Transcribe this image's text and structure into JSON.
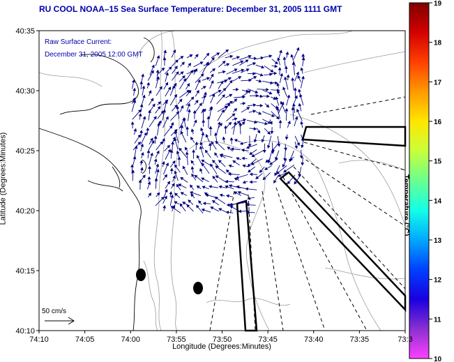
{
  "title": "RU COOL   NOAA–15  Sea Surface Temperature:  December 31, 2005 1111 GMT",
  "annotation": {
    "line1": "Raw Surface Current:",
    "line2": "December 31, 2005 12:00 GMT"
  },
  "scale": {
    "label": "50 cm/s"
  },
  "axes": {
    "ylabel": "Latitude (Degrees:Minutes)",
    "xlabel": "Longitude (Degrees:Minutes)",
    "yticks": [
      "40:35",
      "40:30",
      "40:25",
      "40:20",
      "40:15",
      "40:10"
    ],
    "xticks": [
      "74:10",
      "74:05",
      "74:00",
      "73:55",
      "73:50",
      "73:45",
      "73:40",
      "73:35",
      "73:3"
    ]
  },
  "colorbar": {
    "title": "Temperature (°C)",
    "ticks": [
      "19",
      "18",
      "17",
      "16",
      "15",
      "14",
      "13",
      "12",
      "11",
      "10"
    ],
    "colors": [
      "#7f0000",
      "#d40000",
      "#ff4000",
      "#ff9a00",
      "#ffe600",
      "#c8ff3a",
      "#6aff90",
      "#12ffe8",
      "#00a8ff",
      "#0040ff",
      "#1a00e0",
      "#8a30d0",
      "#ff40ff"
    ]
  },
  "colors": {
    "title": "#0000aa",
    "vectors": "#000080",
    "coast": "#000000",
    "contour": "#9a9a9a"
  }
}
